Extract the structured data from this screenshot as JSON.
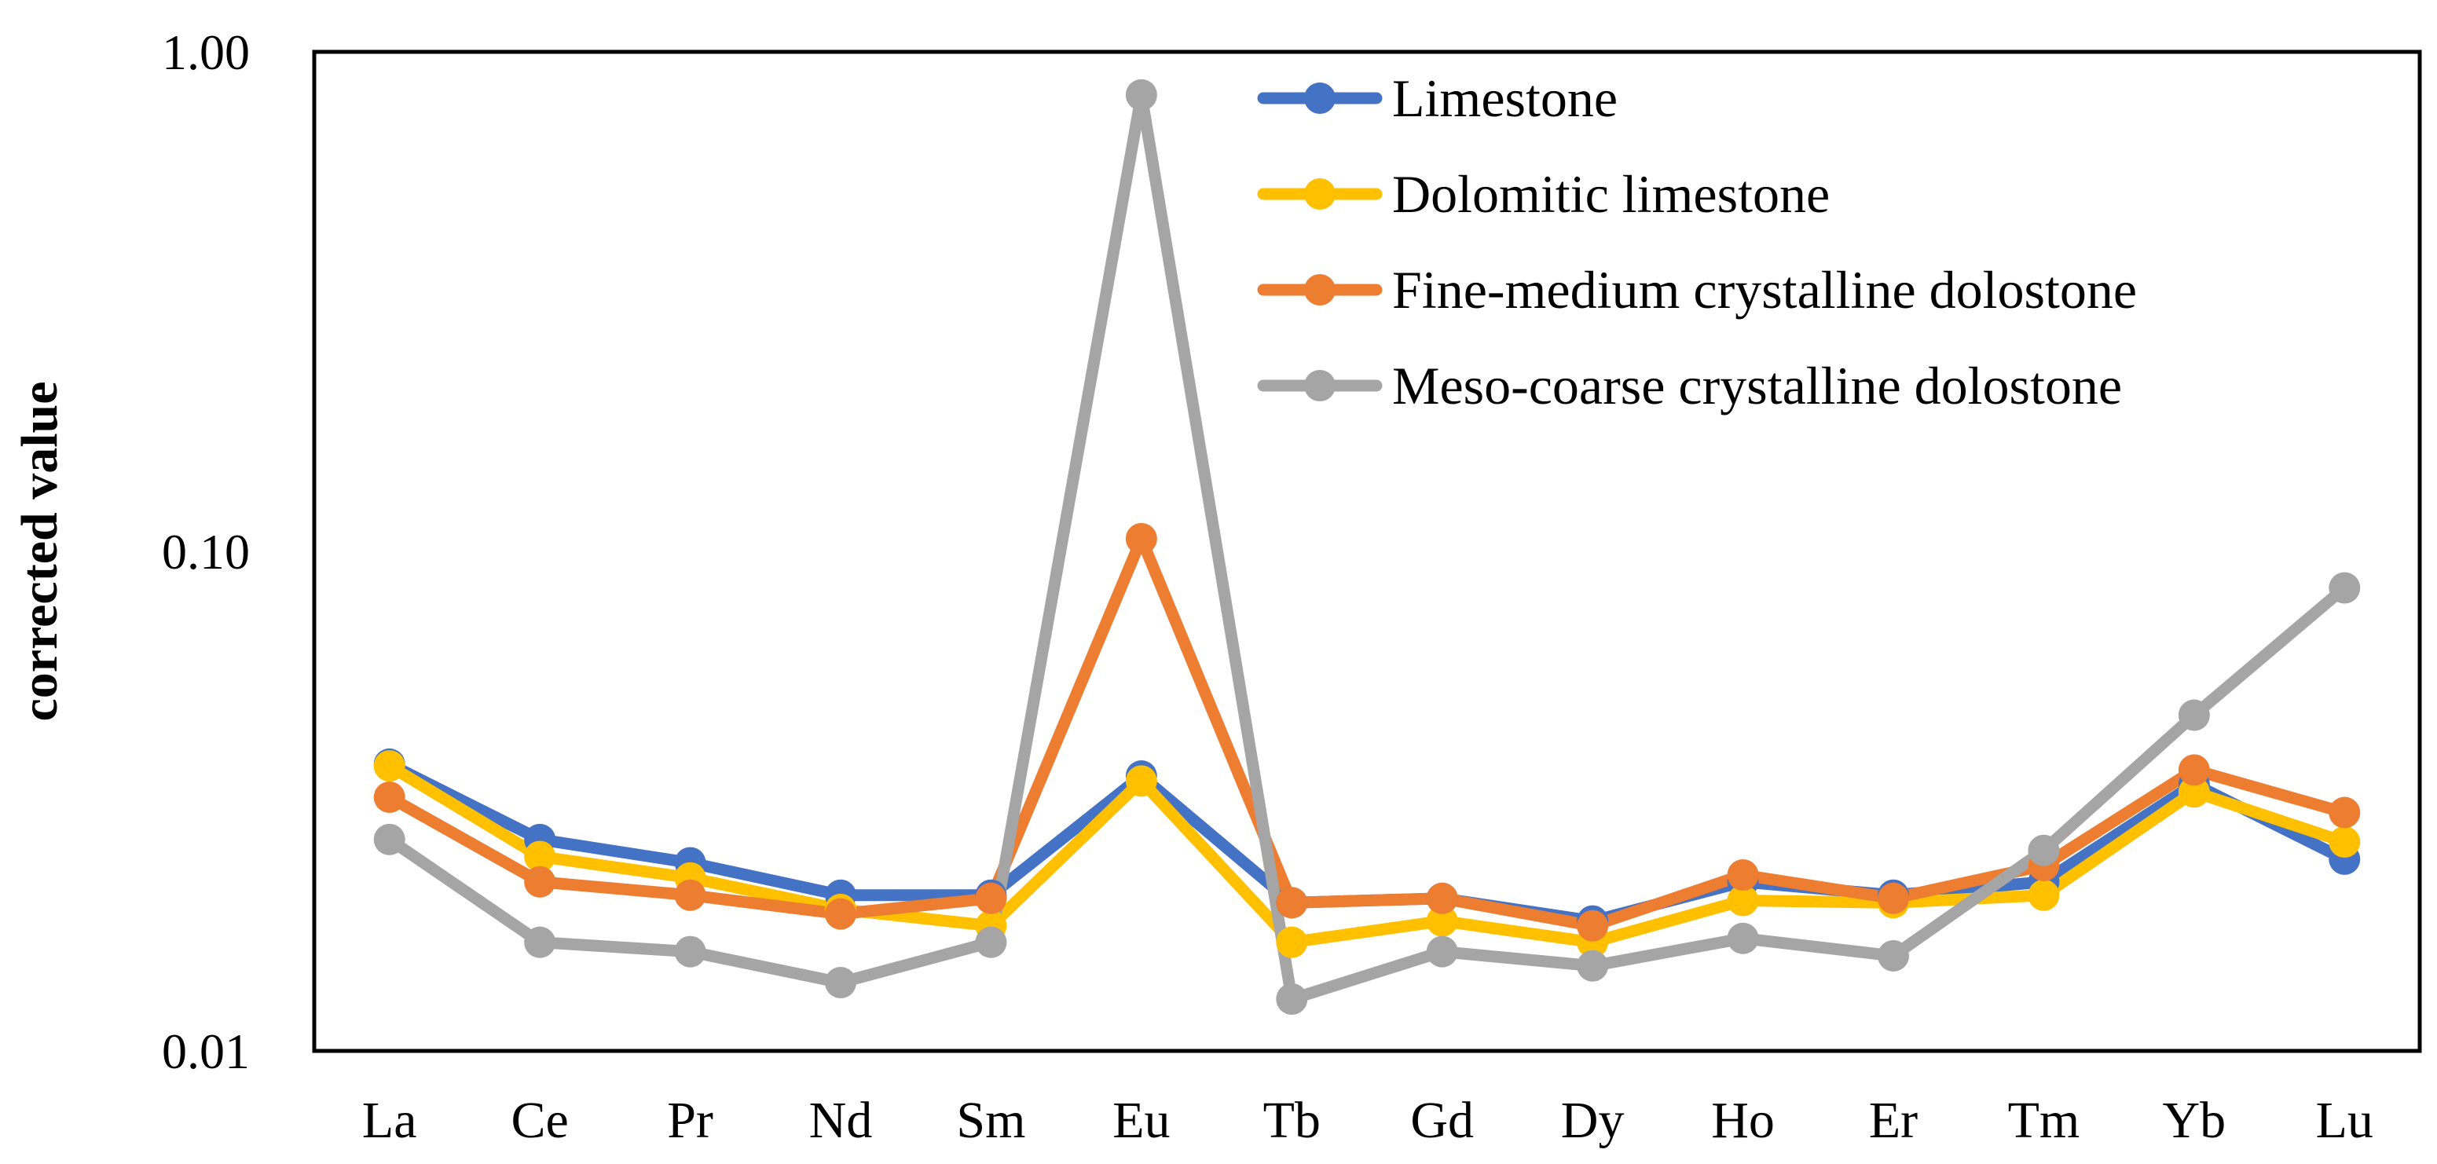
{
  "chart_data": {
    "type": "line",
    "title": "",
    "xlabel": "",
    "ylabel": "corrected value",
    "yscale": "log",
    "ylim": [
      0.01,
      1.0
    ],
    "yticks": [
      "1.00",
      "0.10",
      "0.01"
    ],
    "grid": false,
    "legend_position": "top-right",
    "categories": [
      "La",
      "Ce",
      "Pr",
      "Nd",
      "Sm",
      "Eu",
      "Tb",
      "Gd",
      "Dy",
      "Ho",
      "Er",
      "Tm",
      "Yb",
      "Lu"
    ],
    "series": [
      {
        "name": "Limestone",
        "color": "#4472C4",
        "values": [
          0.0375,
          0.0265,
          0.0238,
          0.0205,
          0.0205,
          0.0355,
          0.0198,
          0.0202,
          0.0182,
          0.0218,
          0.0205,
          0.0218,
          0.0342,
          0.0242
        ]
      },
      {
        "name": "Dolomitic limestone",
        "color": "#FFC000",
        "values": [
          0.0372,
          0.0245,
          0.0222,
          0.0192,
          0.0178,
          0.0347,
          0.0165,
          0.0182,
          0.0165,
          0.02,
          0.0198,
          0.0205,
          0.033,
          0.0262
        ]
      },
      {
        "name": "Fine-medium crystalline dolostone",
        "color": "#ED7D31",
        "values": [
          0.0322,
          0.0218,
          0.0205,
          0.0188,
          0.0202,
          0.106,
          0.0198,
          0.0202,
          0.0178,
          0.0225,
          0.0202,
          0.0235,
          0.0365,
          0.03
        ]
      },
      {
        "name": "Meso-coarse crystalline dolostone",
        "color": "#A5A5A5",
        "values": [
          0.0265,
          0.0165,
          0.0158,
          0.0137,
          0.0165,
          0.82,
          0.0127,
          0.0158,
          0.0148,
          0.0168,
          0.0155,
          0.0252,
          0.047,
          0.0845
        ]
      }
    ]
  }
}
